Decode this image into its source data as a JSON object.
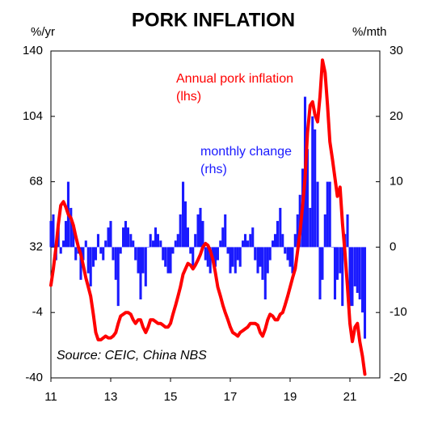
{
  "chart_data": {
    "type": "bar-line",
    "title": "PORK INFLATION",
    "y_label": "%/yr",
    "y2_label": "%/mth",
    "annotations": [
      "Annual pork inflation",
      "(lhs)",
      "monthly change",
      "(rhs)",
      "Source: CEIC, China NBS"
    ],
    "xlim": [
      11,
      22
    ],
    "xticks": [
      11,
      13,
      15,
      17,
      19,
      21
    ],
    "ylim": [
      -40,
      140
    ],
    "yticks": [
      -40,
      -4,
      32,
      68,
      104,
      140
    ],
    "y2lim": [
      -20,
      30
    ],
    "y2ticks": [
      -20,
      -10,
      0,
      10,
      20,
      30
    ],
    "x": [
      11.0,
      11.08,
      11.17,
      11.25,
      11.33,
      11.42,
      11.5,
      11.58,
      11.67,
      11.75,
      11.83,
      11.92,
      12.0,
      12.08,
      12.17,
      12.25,
      12.33,
      12.42,
      12.5,
      12.58,
      12.67,
      12.75,
      12.83,
      12.92,
      13.0,
      13.08,
      13.17,
      13.25,
      13.33,
      13.42,
      13.5,
      13.58,
      13.67,
      13.75,
      13.83,
      13.92,
      14.0,
      14.08,
      14.17,
      14.25,
      14.33,
      14.42,
      14.5,
      14.58,
      14.67,
      14.75,
      14.83,
      14.92,
      15.0,
      15.08,
      15.17,
      15.25,
      15.33,
      15.42,
      15.5,
      15.58,
      15.67,
      15.75,
      15.83,
      15.92,
      16.0,
      16.08,
      16.17,
      16.25,
      16.33,
      16.42,
      16.5,
      16.58,
      16.67,
      16.75,
      16.83,
      16.92,
      17.0,
      17.08,
      17.17,
      17.25,
      17.33,
      17.42,
      17.5,
      17.58,
      17.67,
      17.75,
      17.83,
      17.92,
      18.0,
      18.08,
      18.17,
      18.25,
      18.33,
      18.42,
      18.5,
      18.58,
      18.67,
      18.75,
      18.83,
      18.92,
      19.0,
      19.08,
      19.17,
      19.25,
      19.33,
      19.42,
      19.5,
      19.58,
      19.67,
      19.75,
      19.83,
      19.92,
      20.0,
      20.08,
      20.17,
      20.25,
      20.33,
      20.42,
      20.5,
      20.58,
      20.67,
      20.75,
      20.83,
      20.92,
      21.0,
      21.08,
      21.17,
      21.25,
      21.33,
      21.42,
      21.5
    ],
    "series": [
      {
        "name": "monthly change",
        "kind": "bar",
        "axis": "y2",
        "color": "#1a1aff",
        "values": [
          4,
          5,
          -2,
          3,
          -1,
          1,
          4,
          10,
          6,
          3,
          -2,
          -1,
          -5,
          -2,
          1,
          -4,
          -6,
          -3,
          -2,
          2,
          -1,
          -2,
          1,
          3,
          4,
          -2,
          -5,
          -9,
          -1,
          3,
          4,
          3,
          2,
          1,
          -2,
          -4,
          -8,
          -4,
          -6,
          0,
          2,
          1,
          3,
          2,
          1,
          -2,
          -3,
          -4,
          -4,
          -1,
          1,
          2,
          5,
          10,
          7,
          3,
          -1,
          -3,
          2,
          5,
          6,
          4,
          -2,
          -3,
          -4,
          -2,
          -3,
          -2,
          1,
          3,
          5,
          -1,
          -4,
          -3,
          -4,
          -2,
          -3,
          1,
          2,
          1,
          2,
          3,
          -2,
          -4,
          -3,
          -5,
          -8,
          -4,
          -2,
          1,
          2,
          4,
          6,
          2,
          -1,
          -2,
          -3,
          -4,
          2,
          5,
          8,
          12,
          23,
          15,
          6,
          20,
          18,
          10,
          -8,
          -5,
          5,
          10,
          10,
          0,
          -8,
          -5,
          -4,
          -9,
          2,
          5,
          -9,
          -9,
          -6,
          -7,
          -8,
          -10,
          -14
        ]
      },
      {
        "name": "Annual pork inflation",
        "kind": "line",
        "color": "#ff0000",
        "values": [
          11,
          20,
          32,
          45,
          55,
          57,
          54,
          50,
          48,
          44,
          38,
          32,
          28,
          22,
          15,
          10,
          5,
          -5,
          -15,
          -19,
          -19,
          -18,
          -17,
          -18,
          -18,
          -17,
          -15,
          -10,
          -6,
          -5,
          -4,
          -4,
          -5,
          -8,
          -10,
          -8,
          -8,
          -12,
          -15,
          -12,
          -8,
          -8,
          -9,
          -10,
          -10,
          -11,
          -12,
          -12,
          -10,
          -5,
          0,
          5,
          10,
          17,
          20,
          23,
          22,
          20,
          22,
          25,
          28,
          32,
          34,
          33,
          30,
          25,
          18,
          10,
          5,
          0,
          -4,
          -8,
          -12,
          -15,
          -16,
          -17,
          -15,
          -14,
          -13,
          -12,
          -10,
          -10,
          -10,
          -11,
          -15,
          -17,
          -13,
          -8,
          -5,
          -6,
          -8,
          -8,
          -5,
          -4,
          0,
          5,
          10,
          15,
          20,
          30,
          40,
          55,
          70,
          95,
          110,
          112,
          105,
          101,
          115,
          135,
          128,
          110,
          90,
          80,
          70,
          60,
          65,
          45,
          30,
          10,
          -10,
          -20,
          -12,
          -10,
          -20,
          -28,
          -38
        ]
      }
    ]
  }
}
